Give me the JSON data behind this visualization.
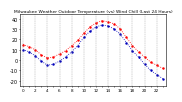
{
  "title": "Milwaukee Weather Outdoor Temperature (vs) Wind Chill (Last 24 Hours)",
  "temp_color": "#ff0000",
  "wind_chill_color": "#0000bb",
  "background_color": "#ffffff",
  "grid_color": "#888888",
  "hours": [
    0,
    1,
    2,
    3,
    4,
    5,
    6,
    7,
    8,
    9,
    10,
    11,
    12,
    13,
    14,
    15,
    16,
    17,
    18,
    19,
    20,
    21,
    22,
    23
  ],
  "temp": [
    15,
    13,
    10,
    5,
    2,
    3,
    6,
    9,
    14,
    19,
    26,
    32,
    36,
    38,
    37,
    35,
    30,
    22,
    14,
    8,
    3,
    -2,
    -5,
    -8
  ],
  "wind_chill": [
    10,
    8,
    4,
    -1,
    -5,
    -4,
    -1,
    3,
    8,
    14,
    22,
    28,
    32,
    34,
    33,
    30,
    25,
    17,
    9,
    3,
    -4,
    -10,
    -14,
    -18
  ],
  "ylim": [
    -25,
    45
  ],
  "yticks": [
    -20,
    -10,
    0,
    10,
    20,
    30,
    40
  ],
  "ylabel_fontsize": 3.5,
  "title_fontsize": 3.2,
  "xlabel_fontsize": 3.0,
  "vgrid_every": 2
}
